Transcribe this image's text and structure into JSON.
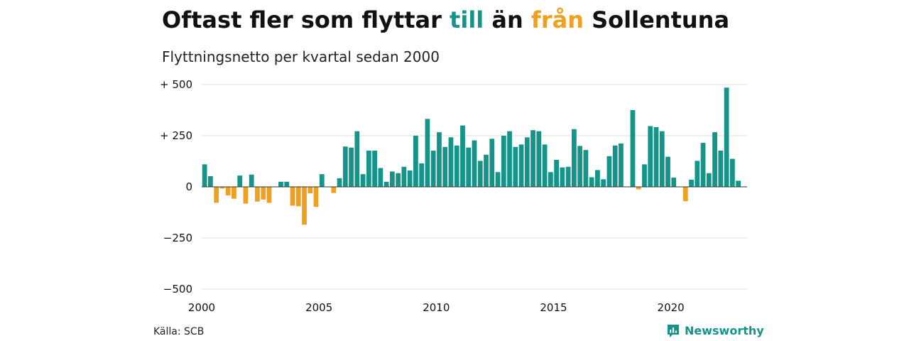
{
  "header": {
    "title_part1": "Oftast fler som flyttar ",
    "title_till": "till",
    "title_part2": " än ",
    "title_fran": "från",
    "title_part3": " Sollentuna",
    "subtitle": "Flyttningsnetto per kvartal sedan 2000"
  },
  "footer": {
    "source": "Källa: SCB",
    "brand": "Newsworthy"
  },
  "colors": {
    "positive": "#15948a",
    "negative": "#f0a020",
    "grid": "#dddddd",
    "text": "#111111"
  },
  "chart_data": {
    "type": "bar",
    "title": "",
    "xlabel": "",
    "ylabel": "",
    "ylim": [
      -500,
      500
    ],
    "yticks": [
      {
        "value": 500,
        "label": "+ 500"
      },
      {
        "value": 250,
        "label": "+ 250"
      },
      {
        "value": 0,
        "label": "0"
      },
      {
        "value": -250,
        "label": "−250"
      },
      {
        "value": -500,
        "label": "−500"
      }
    ],
    "xlim": [
      2000,
      2023.25
    ],
    "xticks": [
      {
        "value": 2000,
        "label": "2000"
      },
      {
        "value": 2005,
        "label": "2005"
      },
      {
        "value": 2010,
        "label": "2010"
      },
      {
        "value": 2015,
        "label": "2015"
      },
      {
        "value": 2020,
        "label": "2020"
      }
    ],
    "grid": true,
    "start_year": 2000,
    "categories": [
      "2000 Q1",
      "2000 Q2",
      "2000 Q3",
      "2000 Q4",
      "2001 Q1",
      "2001 Q2",
      "2001 Q3",
      "2001 Q4",
      "2002 Q1",
      "2002 Q2",
      "2002 Q3",
      "2002 Q4",
      "2003 Q1",
      "2003 Q2",
      "2003 Q3",
      "2003 Q4",
      "2004 Q1",
      "2004 Q2",
      "2004 Q3",
      "2004 Q4",
      "2005 Q1",
      "2005 Q2",
      "2005 Q3",
      "2005 Q4",
      "2006 Q1",
      "2006 Q2",
      "2006 Q3",
      "2006 Q4",
      "2007 Q1",
      "2007 Q2",
      "2007 Q3",
      "2007 Q4",
      "2008 Q1",
      "2008 Q2",
      "2008 Q3",
      "2008 Q4",
      "2009 Q1",
      "2009 Q2",
      "2009 Q3",
      "2009 Q4",
      "2010 Q1",
      "2010 Q2",
      "2010 Q3",
      "2010 Q4",
      "2011 Q1",
      "2011 Q2",
      "2011 Q3",
      "2011 Q4",
      "2012 Q1",
      "2012 Q2",
      "2012 Q3",
      "2012 Q4",
      "2013 Q1",
      "2013 Q2",
      "2013 Q3",
      "2013 Q4",
      "2014 Q1",
      "2014 Q2",
      "2014 Q3",
      "2014 Q4",
      "2015 Q1",
      "2015 Q2",
      "2015 Q3",
      "2015 Q4",
      "2016 Q1",
      "2016 Q2",
      "2016 Q3",
      "2016 Q4",
      "2017 Q1",
      "2017 Q2",
      "2017 Q3",
      "2017 Q4",
      "2018 Q1",
      "2018 Q2",
      "2018 Q3",
      "2018 Q4",
      "2019 Q1",
      "2019 Q2",
      "2019 Q3",
      "2019 Q4",
      "2020 Q1",
      "2020 Q2",
      "2020 Q3",
      "2020 Q4",
      "2021 Q1",
      "2021 Q2",
      "2021 Q3",
      "2021 Q4",
      "2022 Q1",
      "2022 Q2",
      "2022 Q3",
      "2022 Q4",
      "2023 Q1"
    ],
    "values": [
      110,
      52,
      -78,
      -8,
      -42,
      -58,
      55,
      -82,
      60,
      -72,
      -62,
      -78,
      0,
      25,
      25,
      -92,
      -95,
      -185,
      -32,
      -98,
      62,
      0,
      -30,
      42,
      197,
      192,
      272,
      62,
      177,
      177,
      92,
      25,
      75,
      67,
      98,
      80,
      250,
      115,
      332,
      177,
      267,
      195,
      242,
      202,
      300,
      192,
      227,
      127,
      157,
      235,
      72,
      250,
      272,
      195,
      207,
      242,
      277,
      272,
      207,
      72,
      132,
      95,
      98,
      282,
      200,
      180,
      47,
      82,
      37,
      150,
      202,
      212,
      0,
      375,
      -12,
      110,
      297,
      292,
      272,
      147,
      45,
      0,
      -70,
      35,
      127,
      215,
      67,
      267,
      177,
      485,
      137,
      30,
      0
    ]
  }
}
